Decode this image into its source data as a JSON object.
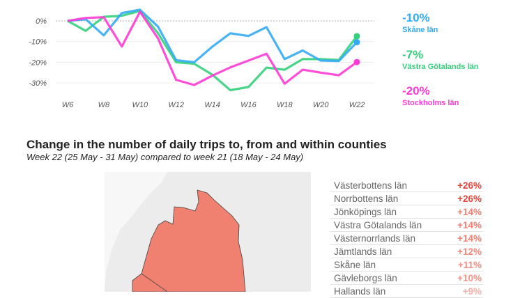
{
  "chart_data": [
    {
      "type": "line",
      "categories": [
        "W6",
        "W7",
        "W8",
        "W9",
        "W10",
        "W11",
        "W12",
        "W13",
        "W14",
        "W15",
        "W16",
        "W17",
        "W18",
        "W19",
        "W20",
        "W21",
        "W22"
      ],
      "x_tick_labels": [
        "W6",
        "W8",
        "W10",
        "W12",
        "W14",
        "W16",
        "W18",
        "W20",
        "W22"
      ],
      "y_tick_labels": [
        "0%",
        "-10%",
        "-20%",
        "-30%"
      ],
      "y_ticks": [
        0,
        -10,
        -20,
        -30
      ],
      "ylim": [
        -37,
        7
      ],
      "series": [
        {
          "name": "Skåne län",
          "label": "-10%",
          "color": "#33aaf5",
          "values": [
            0,
            0.8,
            -7,
            3.8,
            5.4,
            -2.8,
            -19,
            -20,
            -12.5,
            -6,
            -7.3,
            -3,
            -18.5,
            -14.3,
            -19.2,
            -19.4,
            -10.3
          ]
        },
        {
          "name": "Västra Götalands län",
          "label": "-7%",
          "color": "#33d17a",
          "values": [
            0,
            -4.8,
            2,
            2.5,
            4.8,
            -6,
            -20,
            -20.7,
            -26,
            -33.5,
            -32,
            -22.6,
            -23.6,
            -18.5,
            -18.5,
            -18.9,
            -7.4
          ]
        },
        {
          "name": "Stockholms län",
          "label": "-20%",
          "color": "#ff3ad5",
          "values": [
            0,
            1.4,
            1.8,
            -12.4,
            4.4,
            -8.5,
            -28.5,
            -31,
            -26.5,
            -22.5,
            -19.2,
            -15.9,
            -30.4,
            -23.6,
            -25,
            -26.3,
            -19.9
          ]
        }
      ]
    },
    {
      "type": "table",
      "title": "Change in the number of daily trips to, from and within counties",
      "subtitle": "Week 22 (25 May - 31 May) compared to week 21 (18 May - 24 May)",
      "rows": [
        {
          "name": "Västerbottens län",
          "value": "+26%",
          "color": "#e8453c"
        },
        {
          "name": "Norrbottens län",
          "value": "+26%",
          "color": "#e8453c"
        },
        {
          "name": "Jönköpings län",
          "value": "+14%",
          "color": "#f17f72"
        },
        {
          "name": "Västra Götalands län",
          "value": "+14%",
          "color": "#f17f72"
        },
        {
          "name": "Västernorrlands län",
          "value": "+14%",
          "color": "#f17f72"
        },
        {
          "name": "Jämtlands län",
          "value": "+12%",
          "color": "#f38a7e"
        },
        {
          "name": "Skåne län",
          "value": "+11%",
          "color": "#f38f83"
        },
        {
          "name": "Gävleborgs län",
          "value": "+10%",
          "color": "#f49388"
        },
        {
          "name": "Hallands län",
          "value": "+9%",
          "color": "#f7b0a8"
        }
      ]
    }
  ]
}
